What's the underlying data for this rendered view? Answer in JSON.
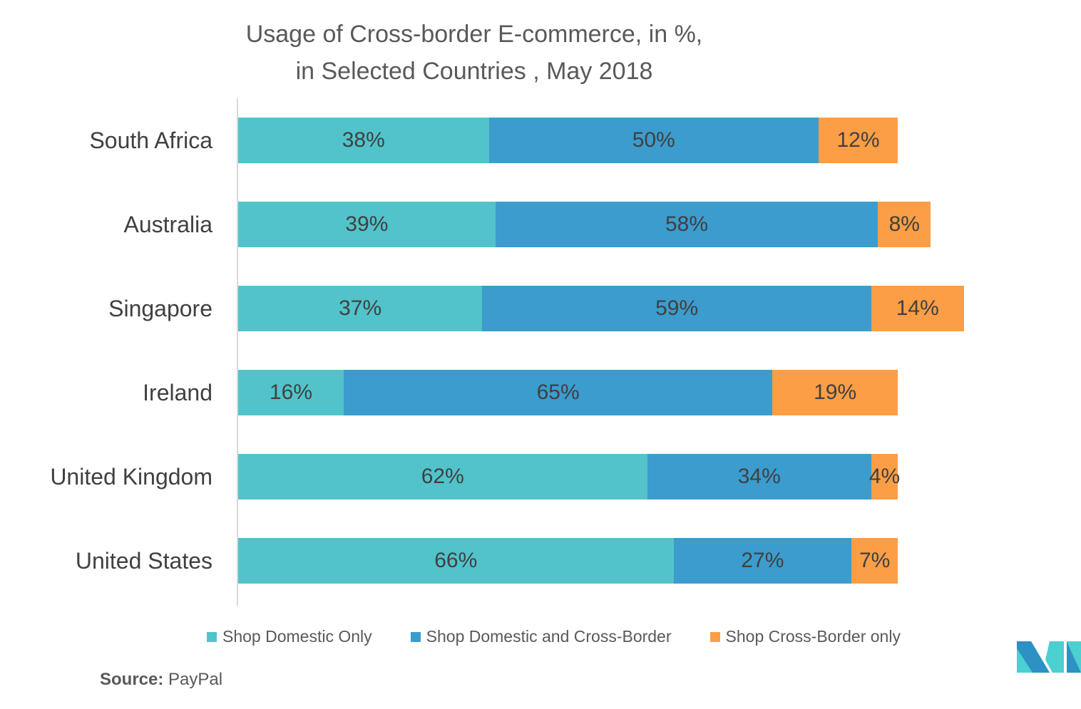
{
  "chart_data": {
    "type": "bar",
    "orientation": "horizontal",
    "stacked": true,
    "title": "Usage of Cross-border E-commerce, in %, in Selected Countries , May 2018",
    "title_lines": [
      "Usage of Cross-border E-commerce, in %,",
      "in Selected Countries , May 2018"
    ],
    "xlabel": "",
    "ylabel": "",
    "grid": false,
    "categories": [
      "South Africa",
      "Australia",
      "Singapore",
      "Ireland",
      "United Kingdom",
      "United States"
    ],
    "series": [
      {
        "name": "Shop Domestic Only",
        "color": "#52C3CA",
        "values": [
          38,
          39,
          37,
          16,
          62,
          66
        ],
        "labels": [
          "38%",
          "39%",
          "37%",
          "16%",
          "62%",
          "66%"
        ]
      },
      {
        "name": "Shop Domestic and Cross-Border",
        "color": "#3B9CCD",
        "values": [
          50,
          58,
          59,
          65,
          34,
          27
        ],
        "labels": [
          "50%",
          "58%",
          "59%",
          "65%",
          "34%",
          "27%"
        ]
      },
      {
        "name": "Shop Cross-Border only",
        "color": "#FC9E45",
        "values": [
          12,
          8,
          14,
          19,
          4,
          7
        ],
        "labels": [
          "12%",
          "8%",
          "14%",
          "19%",
          "4%",
          "7%"
        ]
      }
    ],
    "legend_position": "bottom"
  },
  "footer": {
    "source_label": "Source:",
    "source_value": "PayPal"
  },
  "logo": {
    "name": "mordor-intelligence-logo",
    "colors": [
      "#2E91C4",
      "#4BCFD1"
    ]
  }
}
